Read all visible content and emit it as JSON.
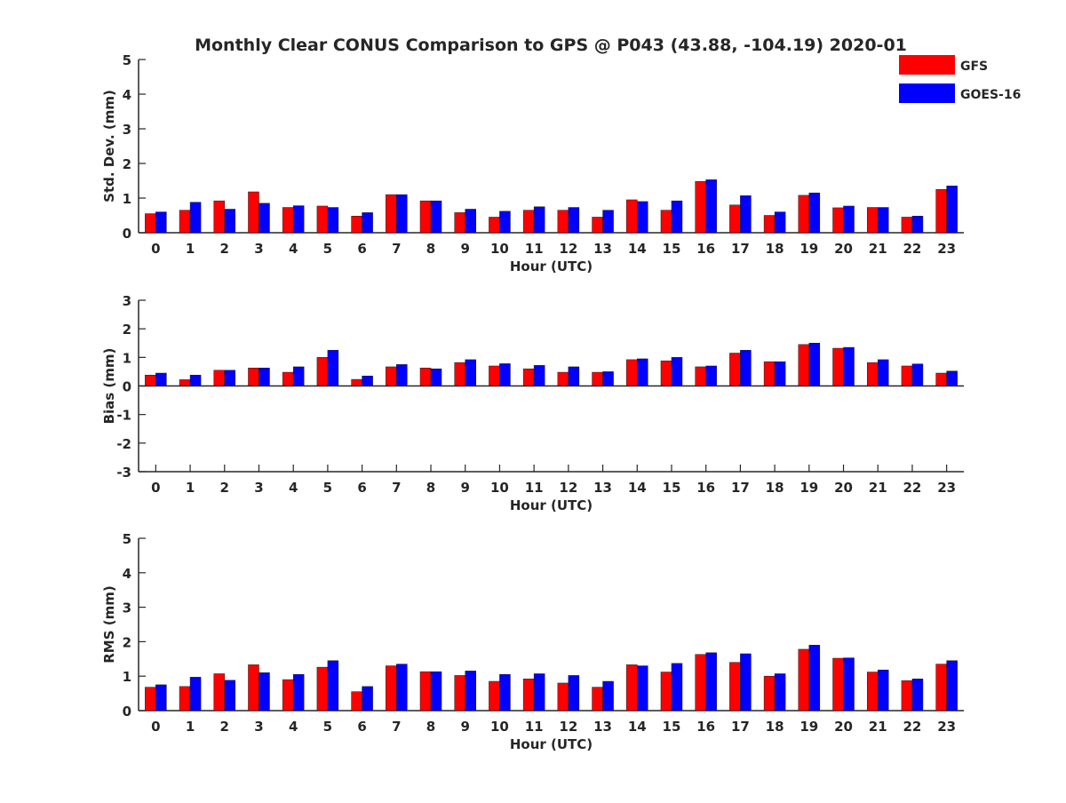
{
  "figure": {
    "title": "Monthly Clear CONUS Comparison to GPS @ P043 (43.88, -104.19) 2020-01",
    "legend": [
      {
        "label": "GFS",
        "color": "#ff0000"
      },
      {
        "label": "GOES-16",
        "color": "#0000ff"
      }
    ]
  },
  "chart_data": [
    {
      "type": "bar",
      "xlabel": "Hour (UTC)",
      "ylabel": "Std. Dev. (mm)",
      "ylim": [
        0,
        5
      ],
      "yticks": [
        0,
        1,
        2,
        3,
        4,
        5
      ],
      "categories": [
        "0",
        "1",
        "2",
        "3",
        "4",
        "5",
        "6",
        "7",
        "8",
        "9",
        "10",
        "11",
        "12",
        "13",
        "14",
        "15",
        "16",
        "17",
        "18",
        "19",
        "20",
        "21",
        "22",
        "23"
      ],
      "series": [
        {
          "name": "GFS",
          "color": "#ff0000",
          "values": [
            0.55,
            0.65,
            0.92,
            1.18,
            0.73,
            0.77,
            0.48,
            1.1,
            0.92,
            0.58,
            0.45,
            0.65,
            0.65,
            0.45,
            0.95,
            0.65,
            1.48,
            0.8,
            0.5,
            1.08,
            0.72,
            0.73,
            0.45,
            1.25
          ]
        },
        {
          "name": "GOES-16",
          "color": "#0000ff",
          "values": [
            0.6,
            0.88,
            0.68,
            0.85,
            0.78,
            0.73,
            0.58,
            1.1,
            0.92,
            0.68,
            0.62,
            0.75,
            0.73,
            0.65,
            0.9,
            0.92,
            1.53,
            1.07,
            0.6,
            1.15,
            0.77,
            0.73,
            0.48,
            1.35
          ]
        }
      ]
    },
    {
      "type": "bar",
      "xlabel": "Hour (UTC)",
      "ylabel": "Bias (mm)",
      "ylim": [
        -3,
        3
      ],
      "yticks": [
        -3,
        -2,
        -1,
        0,
        1,
        2,
        3
      ],
      "categories": [
        "0",
        "1",
        "2",
        "3",
        "4",
        "5",
        "6",
        "7",
        "8",
        "9",
        "10",
        "11",
        "12",
        "13",
        "14",
        "15",
        "16",
        "17",
        "18",
        "19",
        "20",
        "21",
        "22",
        "23"
      ],
      "series": [
        {
          "name": "GFS",
          "color": "#ff0000",
          "values": [
            0.38,
            0.22,
            0.55,
            0.63,
            0.48,
            1.0,
            0.23,
            0.67,
            0.63,
            0.82,
            0.7,
            0.6,
            0.48,
            0.48,
            0.92,
            0.88,
            0.67,
            1.15,
            0.85,
            1.45,
            1.32,
            0.82,
            0.7,
            0.45
          ]
        },
        {
          "name": "GOES-16",
          "color": "#0000ff",
          "values": [
            0.45,
            0.38,
            0.55,
            0.63,
            0.67,
            1.25,
            0.35,
            0.75,
            0.6,
            0.92,
            0.78,
            0.72,
            0.67,
            0.5,
            0.95,
            1.0,
            0.7,
            1.25,
            0.85,
            1.5,
            1.35,
            0.92,
            0.77,
            0.52
          ]
        }
      ]
    },
    {
      "type": "bar",
      "xlabel": "Hour (UTC)",
      "ylabel": "RMS (mm)",
      "ylim": [
        0,
        5
      ],
      "yticks": [
        0,
        1,
        2,
        3,
        4,
        5
      ],
      "categories": [
        "0",
        "1",
        "2",
        "3",
        "4",
        "5",
        "6",
        "7",
        "8",
        "9",
        "10",
        "11",
        "12",
        "13",
        "14",
        "15",
        "16",
        "17",
        "18",
        "19",
        "20",
        "21",
        "22",
        "23"
      ],
      "series": [
        {
          "name": "GFS",
          "color": "#ff0000",
          "values": [
            0.68,
            0.7,
            1.07,
            1.33,
            0.9,
            1.26,
            0.55,
            1.3,
            1.13,
            1.02,
            0.85,
            0.92,
            0.8,
            0.68,
            1.33,
            1.12,
            1.63,
            1.4,
            1.0,
            1.78,
            1.52,
            1.12,
            0.87,
            1.35
          ]
        },
        {
          "name": "GOES-16",
          "color": "#0000ff",
          "values": [
            0.75,
            0.97,
            0.88,
            1.1,
            1.05,
            1.45,
            0.7,
            1.35,
            1.13,
            1.15,
            1.05,
            1.07,
            1.02,
            0.85,
            1.3,
            1.37,
            1.68,
            1.65,
            1.07,
            1.9,
            1.53,
            1.18,
            0.92,
            1.45
          ]
        }
      ]
    }
  ]
}
